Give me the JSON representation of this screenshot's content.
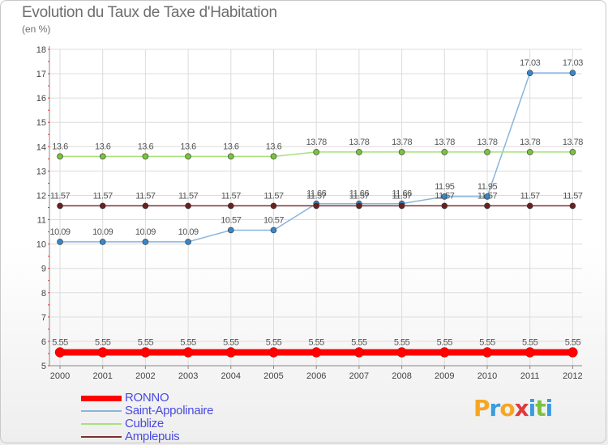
{
  "header": {
    "title": "Evolution du Taux de Taxe d'Habitation",
    "subtitle": "(en %)"
  },
  "logo": {
    "text": "Proxiti",
    "letters": [
      {
        "ch": "P",
        "color": "#f5a623"
      },
      {
        "ch": "r",
        "color": "#3a9be0"
      },
      {
        "ch": "o",
        "color": "#f5a623"
      },
      {
        "ch": "x",
        "color": "#e03a3a"
      },
      {
        "ch": "i",
        "color": "#3a9be0"
      },
      {
        "ch": "t",
        "color": "#7cc242"
      },
      {
        "ch": "i",
        "color": "#3a9be0"
      }
    ]
  },
  "chart_data": {
    "type": "line",
    "title": "Evolution du Taux de Taxe d'Habitation",
    "ylabel": "(en %)",
    "xlabel": "",
    "x": [
      "2000",
      "2001",
      "2002",
      "2003",
      "2004",
      "2005",
      "2006",
      "2007",
      "2008",
      "2009",
      "2010",
      "2011",
      "2012"
    ],
    "ylim": [
      5,
      18
    ],
    "yticks": [
      "5",
      "6",
      "7",
      "8",
      "9",
      "10",
      "11",
      "12",
      "13",
      "14",
      "15",
      "16",
      "17",
      "18"
    ],
    "grid": true,
    "legend_position": "bottom-left",
    "series": [
      {
        "name": "RONNO",
        "color": "#ff0000",
        "marker": "#ff0000",
        "values": [
          5.55,
          5.55,
          5.55,
          5.55,
          5.55,
          5.55,
          5.55,
          5.55,
          5.55,
          5.55,
          5.55,
          5.55,
          5.55
        ],
        "labels": [
          "5.55",
          "5.55",
          "5.55",
          "5.55",
          "5.55",
          "5.55",
          "5.55",
          "5.55",
          "5.55",
          "5.55",
          "5.55",
          "5.55",
          "5.55"
        ]
      },
      {
        "name": "Saint-Appolinaire",
        "color": "#8ab4dc",
        "marker": "#3a86c8",
        "values": [
          10.09,
          10.09,
          10.09,
          10.09,
          10.57,
          10.57,
          11.66,
          11.66,
          11.66,
          11.95,
          11.95,
          17.03,
          17.03
        ],
        "labels": [
          "10.09",
          "10.09",
          "10.09",
          "10.09",
          "10.57",
          "10.57",
          "11.66",
          "11.66",
          "11.66",
          "11.95",
          "11.95",
          "17.03",
          "17.03"
        ]
      },
      {
        "name": "Cublize",
        "color": "#a8e07a",
        "marker": "#7cc242",
        "values": [
          13.6,
          13.6,
          13.6,
          13.6,
          13.6,
          13.6,
          13.78,
          13.78,
          13.78,
          13.78,
          13.78,
          13.78,
          13.78
        ],
        "labels": [
          "13.6",
          "13.6",
          "13.6",
          "13.6",
          "13.6",
          "13.6",
          "13.78",
          "13.78",
          "13.78",
          "13.78",
          "13.78",
          "13.78",
          "13.78"
        ]
      },
      {
        "name": "Amplepuis",
        "color": "#7a3030",
        "marker": "#6a2020",
        "values": [
          11.57,
          11.57,
          11.57,
          11.57,
          11.57,
          11.57,
          11.57,
          11.57,
          11.57,
          11.57,
          11.57,
          11.57,
          11.57
        ],
        "labels": [
          "11.57",
          "11.57",
          "11.57",
          "11.57",
          "11.57",
          "11.57",
          "11.57",
          "11.57",
          "11.57",
          "11.57",
          "11.57",
          "11.57",
          "11.57"
        ]
      }
    ]
  }
}
